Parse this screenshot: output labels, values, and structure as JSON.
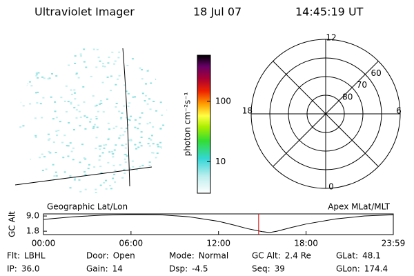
{
  "header": {
    "title": "Ultraviolet Imager",
    "date": "18 Jul 07",
    "time": "14:45:19 UT"
  },
  "colorbar": {
    "label": "photon cm⁻²s⁻¹",
    "scale": "log",
    "lim": [
      3,
      580
    ],
    "ticks": [
      10,
      100
    ]
  },
  "polar": {
    "mlt_labels": [
      12,
      6,
      0,
      18
    ],
    "lat_labels": [
      60,
      70,
      80
    ],
    "lat_lim": [
      90,
      50
    ]
  },
  "map_labels": {
    "left": "Geographic Lat/Lon",
    "right": "Apex MLat/MLT"
  },
  "chart_data": {
    "type": "line",
    "ylabel": "GC Alt",
    "ylim": [
      0.2,
      10
    ],
    "yticks": [
      {
        "value": 9.0,
        "label": "9.0"
      },
      {
        "value": 1.8,
        "label": "1.8"
      }
    ],
    "xlim": [
      0,
      23.98
    ],
    "xticks": [
      {
        "value": 0,
        "label": "00:00"
      },
      {
        "value": 6,
        "label": "06:00"
      },
      {
        "value": 12,
        "label": "12:00"
      },
      {
        "value": 18,
        "label": "18:00"
      },
      {
        "value": 23.98,
        "label": "23:59"
      }
    ],
    "series": [
      {
        "color": "#000000",
        "x": [
          0,
          2,
          4,
          6,
          8,
          10,
          12,
          13,
          14,
          15,
          15.5,
          16,
          17,
          18,
          20,
          22,
          23.98
        ],
        "values": [
          7.4,
          8.6,
          9.4,
          9.7,
          9.6,
          8.6,
          6.5,
          4.8,
          3.0,
          1.6,
          1.2,
          1.8,
          3.6,
          5.2,
          7.6,
          9.0,
          9.6
        ]
      }
    ],
    "marker_time": 14.75,
    "marker_color": "#cc0000"
  },
  "info": [
    [
      {
        "label": "Flt:",
        "value": "LBHL"
      },
      {
        "label": "Door:",
        "value": "Open"
      },
      {
        "label": "Mode:",
        "value": "Normal"
      },
      {
        "label": "GC Alt:",
        "value": "2.4 Re"
      },
      {
        "label": "GLat:",
        "value": "48.1"
      }
    ],
    [
      {
        "label": "IP:",
        "value": "36.0"
      },
      {
        "label": "Gain:",
        "value": "14"
      },
      {
        "label": "Dsp:",
        "value": "-4.5"
      },
      {
        "label": "Seq:",
        "value": "39"
      },
      {
        "label": "GLon:",
        "value": "174.4"
      }
    ]
  ]
}
